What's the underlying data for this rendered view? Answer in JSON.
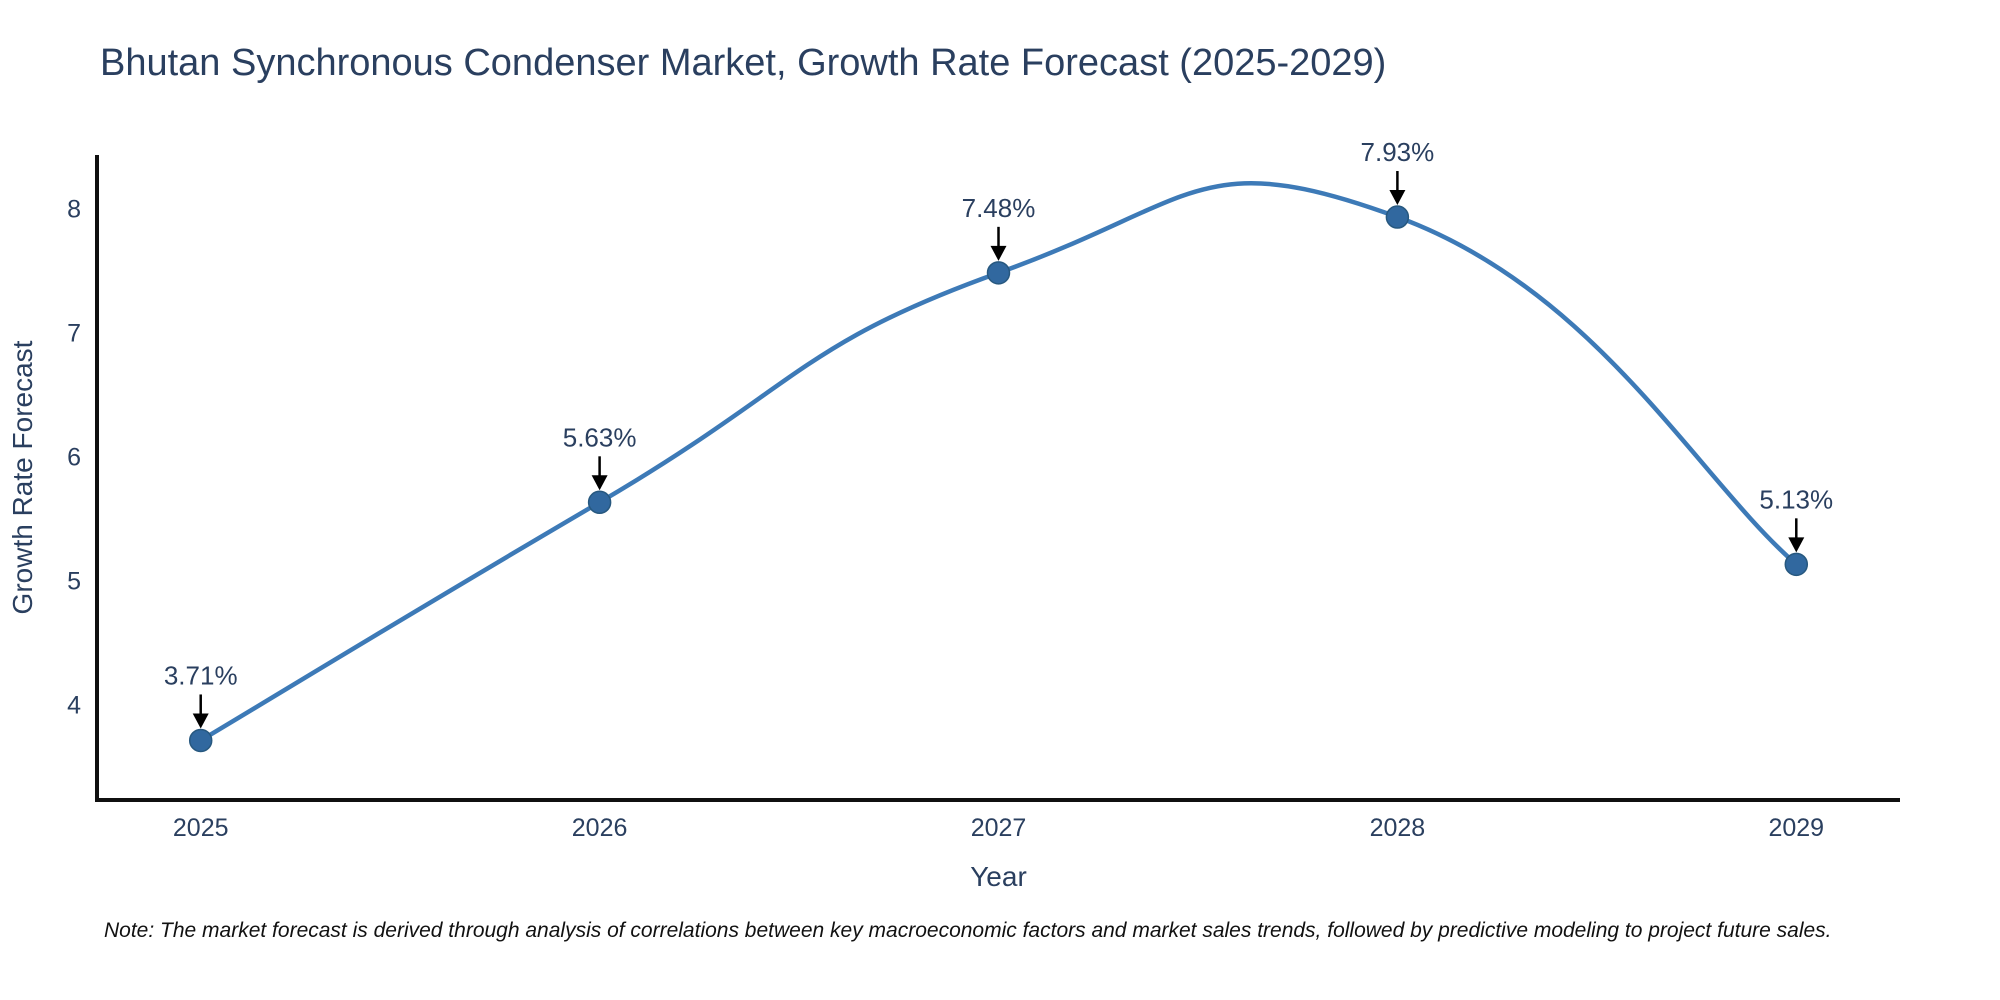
{
  "note": {
    "text": "Note: The market forecast is derived through analysis of correlations between key macroeconomic factors and market sales trends, followed by predictive modeling to project future sales."
  },
  "chart_data": {
    "type": "line",
    "title": "Bhutan Synchronous Condenser Market, Growth Rate Forecast (2025-2029)",
    "xlabel": "Year",
    "ylabel": "Growth Rate Forecast",
    "x": [
      2025,
      2026,
      2027,
      2028,
      2029
    ],
    "categories": [
      "2025",
      "2026",
      "2027",
      "2028",
      "2029"
    ],
    "values": [
      3.71,
      5.63,
      7.48,
      7.93,
      5.13
    ],
    "point_labels": [
      "3.71%",
      "5.63%",
      "7.48%",
      "7.93%",
      "5.13%"
    ],
    "ytick_values": [
      4,
      5,
      6,
      7,
      8
    ],
    "ytick_labels": [
      "4",
      "5",
      "6",
      "7",
      "8"
    ],
    "xlim": [
      2024.74,
      2029.26
    ],
    "ylim": [
      3.23,
      8.43
    ],
    "line_shape": "spline",
    "grid": false,
    "legend": "none",
    "colors": {
      "line": "#3d7ab7",
      "marker": "#31689f",
      "marker_edge": "#27587f",
      "axis": "#101010",
      "text": "#2a3f5f",
      "annotation_arrow": "#000000",
      "background": "#ffffff"
    }
  }
}
